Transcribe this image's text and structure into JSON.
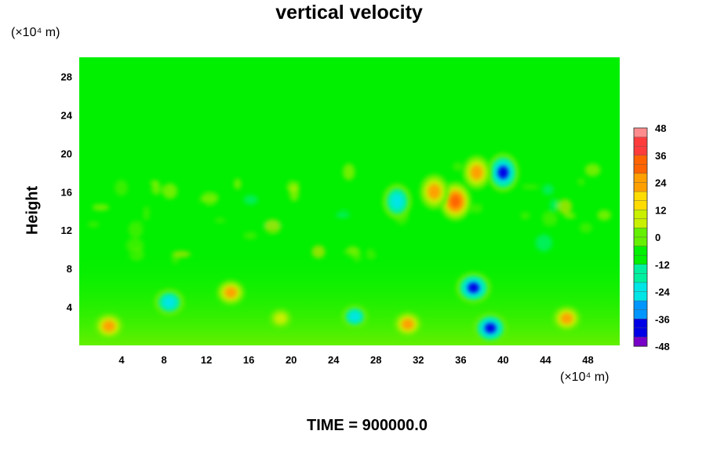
{
  "chart_data": {
    "type": "heatmap",
    "title": "vertical velocity",
    "xlabel": "",
    "ylabel": "Height",
    "x_unit": "(×10⁴ m)",
    "y_unit": "(×10⁴ m)",
    "xlim": [
      0,
      51
    ],
    "ylim": [
      0,
      30
    ],
    "x_ticks": [
      4,
      8,
      12,
      16,
      20,
      24,
      28,
      32,
      36,
      40,
      44,
      48
    ],
    "y_ticks": [
      4,
      8,
      12,
      16,
      20,
      24,
      28
    ],
    "colorbar": {
      "ticks": [
        48,
        36,
        24,
        12,
        0,
        -12,
        -24,
        -36,
        -48
      ],
      "range": [
        -48,
        48
      ],
      "colors": [
        "#ff8c8c",
        "#ff3c3c",
        "#ff6400",
        "#ffa000",
        "#ffdc00",
        "#c8f000",
        "#64f000",
        "#00f000",
        "#00f0a0",
        "#00e6e6",
        "#0096ff",
        "#0000e6",
        "#7800c8"
      ]
    },
    "features": [
      {
        "x": 2.8,
        "y": 2.0,
        "value": 30
      },
      {
        "x": 8.5,
        "y": 4.5,
        "value": -32
      },
      {
        "x": 14.3,
        "y": 5.5,
        "value": 28
      },
      {
        "x": 19.0,
        "y": 2.8,
        "value": 16
      },
      {
        "x": 26.0,
        "y": 3.0,
        "value": -24
      },
      {
        "x": 31.0,
        "y": 2.2,
        "value": 28
      },
      {
        "x": 37.2,
        "y": 6.0,
        "value": -42
      },
      {
        "x": 38.8,
        "y": 1.8,
        "value": -40
      },
      {
        "x": 35.5,
        "y": 15.0,
        "value": 36
      },
      {
        "x": 33.5,
        "y": 16.0,
        "value": 30
      },
      {
        "x": 40.0,
        "y": 18.0,
        "value": -36
      },
      {
        "x": 30.0,
        "y": 15.0,
        "value": -30
      },
      {
        "x": 46.0,
        "y": 2.8,
        "value": 28
      },
      {
        "x": 37.5,
        "y": 18.0,
        "value": 28
      }
    ]
  },
  "footer": {
    "time_label": "TIME = 900000.0"
  }
}
